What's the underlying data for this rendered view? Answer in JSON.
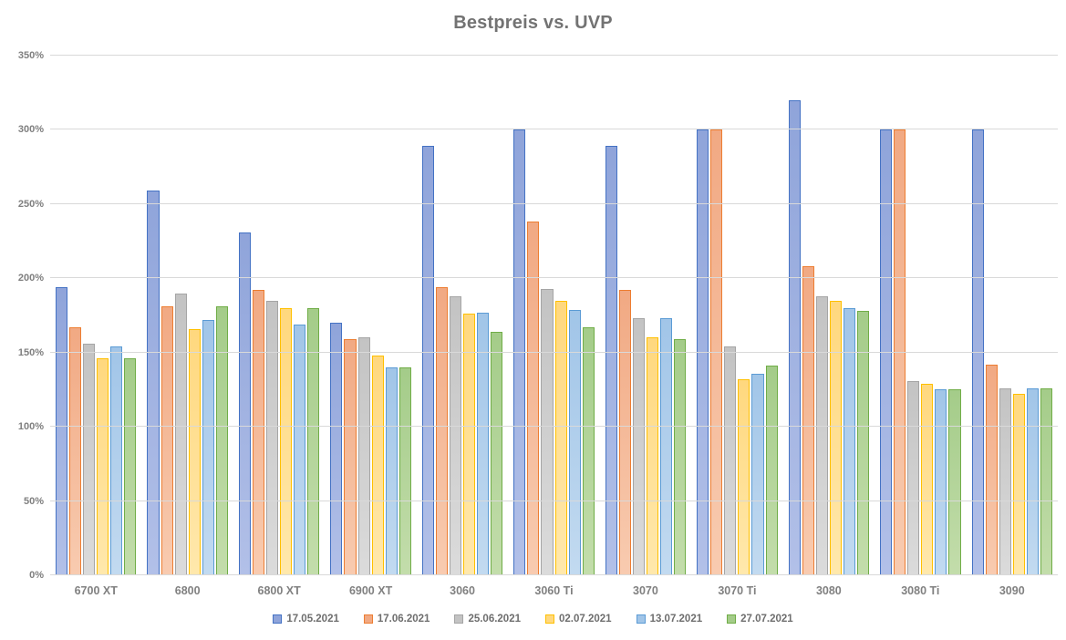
{
  "chart_data": {
    "type": "bar",
    "title": "Bestpreis vs. UVP",
    "xlabel": "",
    "ylabel": "",
    "ylim": [
      0,
      350
    ],
    "ytick_step": 50,
    "ytick_suffix": "%",
    "grid": true,
    "legend_position": "bottom",
    "categories": [
      "6700 XT",
      "6800",
      "6800 XT",
      "6900 XT",
      "3060",
      "3060 Ti",
      "3070",
      "3070 Ti",
      "3080",
      "3080 Ti",
      "3090"
    ],
    "series": [
      {
        "name": "17.05.2021",
        "border_color": "#4472C4",
        "fill_top": "#8FA4DA",
        "fill_bottom": "#B2C0E8",
        "values": [
          194,
          259,
          231,
          170,
          289,
          300,
          289,
          300,
          320,
          300,
          300
        ]
      },
      {
        "name": "17.06.2021",
        "border_color": "#ED7D31",
        "fill_top": "#F1A983",
        "fill_bottom": "#F8CBB0",
        "values": [
          167,
          181,
          192,
          159,
          194,
          238,
          192,
          300,
          208,
          300,
          142
        ]
      },
      {
        "name": "25.06.2021",
        "border_color": "#A5A5A5",
        "fill_top": "#C3C3C3",
        "fill_bottom": "#DBDBDB",
        "values": [
          156,
          190,
          185,
          160,
          188,
          193,
          173,
          154,
          188,
          131,
          126
        ]
      },
      {
        "name": "02.07.2021",
        "border_color": "#FFC000",
        "fill_top": "#FFD87E",
        "fill_bottom": "#FFE8AC",
        "values": [
          146,
          166,
          180,
          148,
          176,
          185,
          160,
          132,
          185,
          129,
          122
        ]
      },
      {
        "name": "13.07.2021",
        "border_color": "#5B9BD5",
        "fill_top": "#A1C5E8",
        "fill_bottom": "#C2DAF0",
        "values": [
          154,
          172,
          169,
          140,
          177,
          179,
          173,
          136,
          180,
          125,
          126
        ]
      },
      {
        "name": "27.07.2021",
        "border_color": "#70AD47",
        "fill_top": "#A4CC89",
        "fill_bottom": "#C3DDAB",
        "values": [
          146,
          181,
          180,
          140,
          164,
          167,
          159,
          141,
          178,
          125,
          126
        ]
      }
    ]
  },
  "colors": {
    "background": "#FFFFFF",
    "title": "#737373",
    "gridline": "#D9D9D9",
    "axis_label": "#808080",
    "legend_label": "#6E6E6E"
  }
}
